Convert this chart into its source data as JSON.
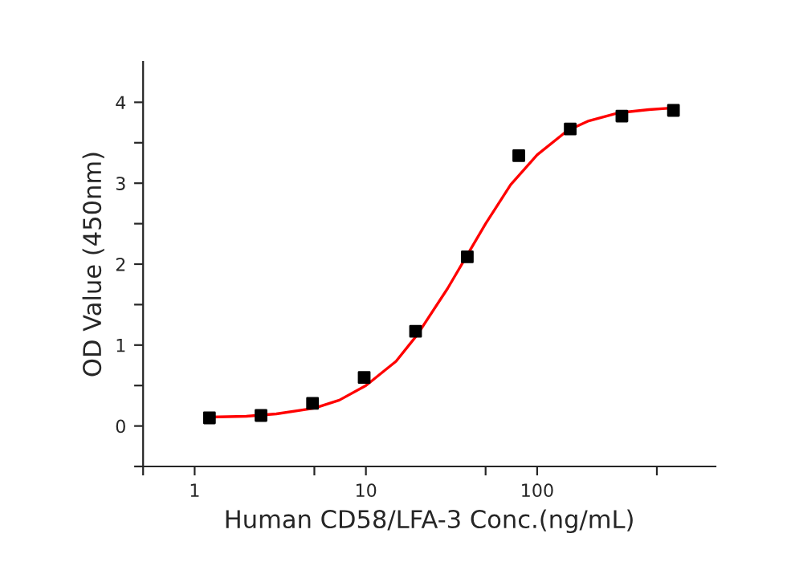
{
  "chart_data": {
    "type": "scatter",
    "xlabel": "Human CD58/LFA-3 Conc.(ng/mL)",
    "ylabel": "OD Value (450nm)",
    "log": "x",
    "xlim": [
      0.5,
      1100
    ],
    "ylim": [
      -0.5,
      4.5
    ],
    "xticks": [
      {
        "value": 0.5,
        "label": null
      },
      1,
      {
        "value": 5,
        "label": null
      },
      10,
      {
        "value": 50,
        "label": null
      },
      100,
      {
        "value": 500,
        "label": null
      }
    ],
    "yticks": [
      {
        "value": -0.5,
        "label": null
      },
      0,
      {
        "value": 0.5,
        "label": null
      },
      1,
      {
        "value": 1.5,
        "label": null
      },
      2,
      {
        "value": 2.5,
        "label": null
      },
      3,
      {
        "value": 3.5,
        "label": null
      },
      4
    ],
    "grid": false,
    "legend": false,
    "series": [
      {
        "color": "#000000",
        "marker": "square",
        "x": [
          1.22,
          2.44,
          4.88,
          9.77,
          19.5,
          39.1,
          78.1,
          156,
          312.5,
          625
        ],
        "values": [
          0.1,
          0.13,
          0.28,
          0.6,
          1.17,
          2.09,
          3.34,
          3.67,
          3.83,
          3.9
        ]
      },
      {
        "type": "line",
        "color": "#ff0000",
        "marker": "none",
        "line_style": "solid",
        "x": [
          1.22,
          2,
          3,
          5,
          7,
          10,
          15,
          20,
          30,
          40,
          50,
          70,
          100,
          150,
          200,
          300,
          450,
          625
        ],
        "values": [
          0.11,
          0.12,
          0.15,
          0.22,
          0.32,
          0.5,
          0.8,
          1.13,
          1.7,
          2.15,
          2.5,
          2.98,
          3.35,
          3.65,
          3.77,
          3.87,
          3.91,
          3.93
        ]
      }
    ]
  }
}
